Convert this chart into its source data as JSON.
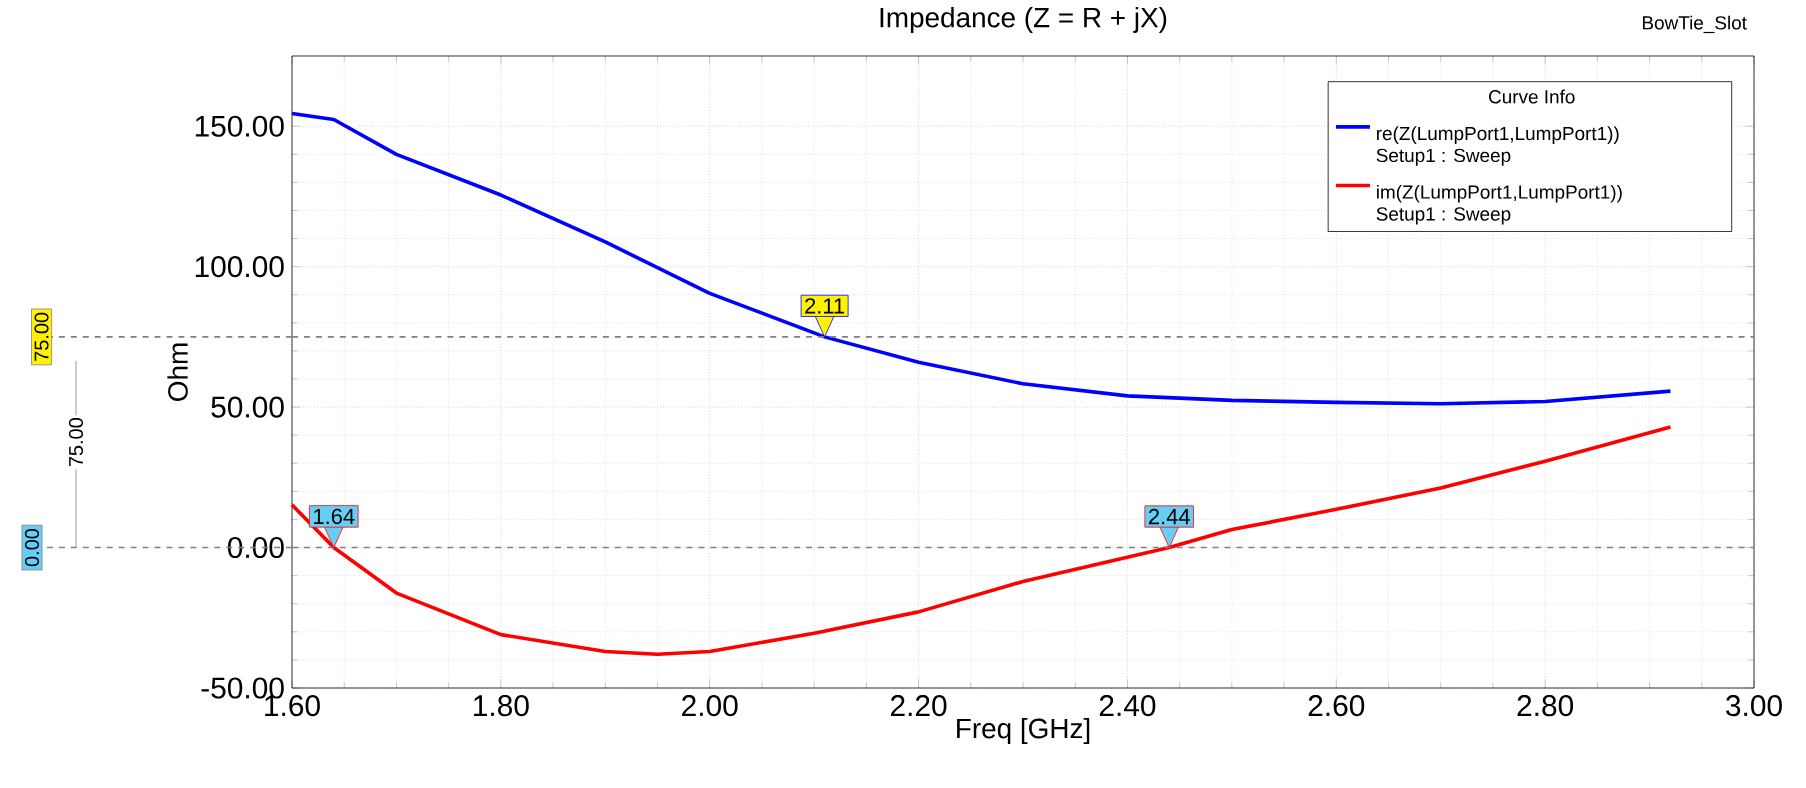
{
  "chart_data": {
    "type": "line",
    "title": "Impedance (Z = R + jX)",
    "xlabel": "Freq [GHz]",
    "ylabel": "Ohm",
    "legend_title": "Curve Info",
    "series": [
      {
        "name": "re(Z(LumpPort1,LumpPort1)) Setup1 : Sweep",
        "color": "#0000ff",
        "x": [
          1.6,
          1.64,
          1.7,
          1.8,
          1.9,
          2.0,
          2.11,
          2.2,
          2.3,
          2.4,
          2.5,
          2.6,
          2.7,
          2.8,
          2.92
        ],
        "values": [
          154.5,
          152.4,
          140,
          125.5,
          108.8,
          90.5,
          75,
          66,
          58.3,
          54,
          52.4,
          51.7,
          51.2,
          52,
          55.7
        ]
      },
      {
        "name": "im(Z(LumpPort1,LumpPort1)) Setup1 : Sweep",
        "color": "#ff0000",
        "x": [
          1.6,
          1.64,
          1.7,
          1.8,
          1.9,
          1.95,
          2.0,
          2.1,
          2.2,
          2.3,
          2.44,
          2.5,
          2.6,
          2.7,
          2.8,
          2.92
        ],
        "values": [
          15.2,
          0,
          -16.2,
          -31,
          -37,
          -38,
          -37,
          -30.5,
          -22.9,
          -12.1,
          0,
          6.4,
          13.6,
          21.2,
          30.7,
          42.9
        ]
      }
    ],
    "xlim": [
      1.6,
      3.0
    ],
    "ylim": [
      -50,
      175
    ],
    "xticks": [
      {
        "value": 1.6,
        "label": "1.60"
      },
      {
        "value": 1.8,
        "label": "1.80"
      },
      {
        "value": 2.0,
        "label": "2.00"
      },
      {
        "value": 2.2,
        "label": "2.20"
      },
      {
        "value": 2.4,
        "label": "2.40"
      },
      {
        "value": 2.6,
        "label": "2.60"
      },
      {
        "value": 2.8,
        "label": "2.80"
      },
      {
        "value": 3.0,
        "label": "3.00"
      }
    ],
    "yticks": [
      {
        "value": -50,
        "label": "-50.00"
      },
      {
        "value": 0,
        "label": "0.00"
      },
      {
        "value": 50,
        "label": "50.00"
      },
      {
        "value": 100,
        "label": "100.00"
      },
      {
        "value": 150,
        "label": "150.00"
      }
    ],
    "ref_lines": [
      {
        "axis": "y",
        "value": 75,
        "label": "75.00",
        "color": "#808080",
        "line_style": "dashed"
      },
      {
        "axis": "y",
        "value": 0,
        "label": "0.00",
        "color": "#808080",
        "line_style": "dashed"
      }
    ],
    "annotations": [
      {
        "text": "2.11",
        "x": 2.11,
        "y": 75
      },
      {
        "text": "1.64",
        "x": 1.64,
        "y": 0
      },
      {
        "text": "2.44",
        "x": 2.44,
        "y": 0
      },
      "75.00",
      "BowTie_Slot"
    ],
    "grid": true,
    "legend": "top right",
    "marker": "none",
    "line_style": "solid"
  }
}
